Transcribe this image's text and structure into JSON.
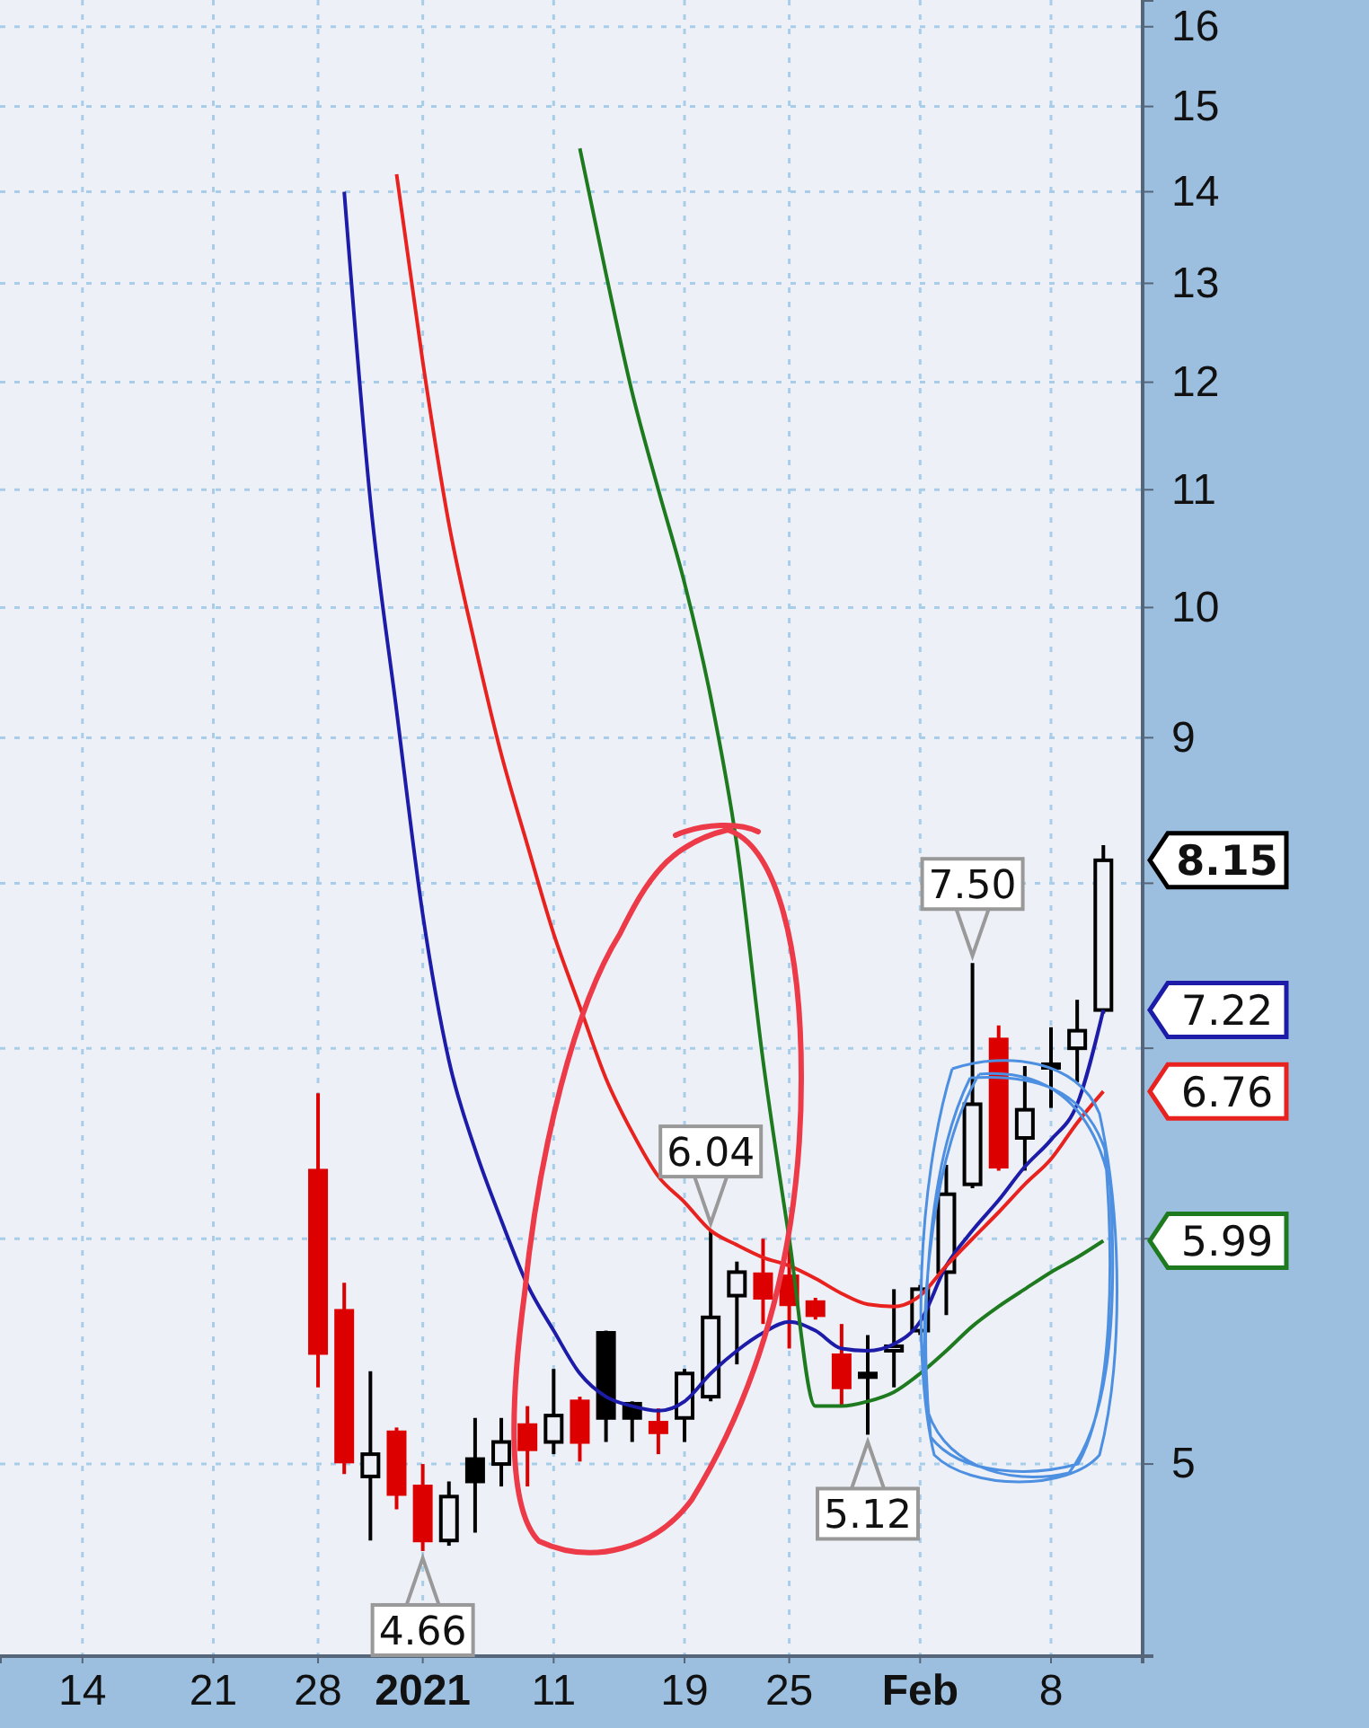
{
  "chart_data": {
    "type": "candlestick",
    "categories": [
      null,
      null,
      "14",
      null,
      null,
      null,
      null,
      "21",
      null,
      null,
      null,
      "28",
      null,
      null,
      null,
      "2021",
      null,
      null,
      null,
      null,
      "11",
      null,
      null,
      null,
      null,
      "19",
      null,
      null,
      null,
      "25",
      null,
      null,
      null,
      null,
      "Feb",
      null,
      null,
      null,
      null,
      "8",
      null,
      null,
      null
    ],
    "ohlc": [
      null,
      null,
      null,
      null,
      null,
      null,
      null,
      null,
      null,
      null,
      null,
      [
        6.34,
        6.75,
        5.32,
        5.47
      ],
      [
        5.66,
        5.79,
        4.96,
        5.01
      ],
      [
        4.95,
        5.39,
        4.7,
        5.04
      ],
      [
        5.13,
        5.15,
        4.82,
        4.88
      ],
      [
        4.91,
        5.0,
        4.66,
        4.7
      ],
      [
        4.7,
        4.93,
        4.68,
        4.87
      ],
      [
        5.02,
        5.19,
        4.73,
        4.93
      ],
      [
        5.0,
        5.19,
        4.91,
        5.09
      ],
      [
        5.16,
        5.24,
        4.91,
        5.06
      ],
      [
        5.09,
        5.4,
        5.04,
        5.2
      ],
      [
        5.26,
        5.28,
        5.01,
        5.09
      ],
      [
        5.56,
        5.57,
        5.09,
        5.19
      ],
      [
        5.25,
        5.26,
        5.09,
        5.19
      ],
      [
        5.17,
        5.23,
        5.04,
        5.13
      ],
      [
        5.19,
        5.4,
        5.09,
        5.38
      ],
      [
        5.28,
        6.04,
        5.26,
        5.63
      ],
      [
        5.73,
        5.89,
        5.42,
        5.84
      ],
      [
        5.83,
        6.0,
        5.6,
        5.72
      ],
      [
        5.82,
        5.98,
        5.49,
        5.69
      ],
      [
        5.7,
        5.72,
        5.62,
        5.64
      ],
      [
        5.46,
        5.6,
        5.24,
        5.32
      ],
      [
        5.37,
        5.55,
        5.12,
        5.38
      ],
      [
        5.48,
        5.76,
        5.32,
        5.5
      ],
      [
        5.57,
        5.78,
        5.55,
        5.76
      ],
      [
        5.84,
        6.37,
        5.64,
        6.22
      ],
      [
        6.27,
        7.5,
        6.25,
        6.69
      ],
      [
        7.05,
        7.13,
        6.34,
        6.36
      ],
      [
        6.51,
        6.9,
        6.34,
        6.66
      ],
      [
        6.91,
        7.12,
        6.67,
        6.89
      ],
      [
        7.0,
        7.28,
        6.81,
        7.1
      ],
      [
        7.22,
        8.25,
        7.2,
        8.15
      ],
      null
    ],
    "colors": [
      null,
      null,
      null,
      null,
      null,
      null,
      null,
      null,
      null,
      null,
      null,
      "#dd0000",
      "#dd0000",
      "#000000",
      "#dd0000",
      "#dd0000",
      "#000000",
      "#000000",
      "#000000",
      "#dd0000",
      "#000000",
      "#dd0000",
      "#000000",
      "#000000",
      "#dd0000",
      "#000000",
      "#000000",
      "#000000",
      "#dd0000",
      "#dd0000",
      "#dd0000",
      "#dd0000",
      "#000000",
      "#000000",
      "#000000",
      "#000000",
      "#000000",
      "#dd0000",
      "#000000",
      "#000000",
      "#000000",
      "#000000",
      null
    ],
    "series": [
      {
        "type": "line",
        "color": "#1c1ca8",
        "values": [
          null,
          null,
          null,
          null,
          null,
          null,
          null,
          null,
          null,
          null,
          null,
          null,
          14.0,
          10.9,
          9.2,
          7.8,
          6.93,
          6.45,
          6.09,
          5.78,
          5.57,
          5.38,
          5.28,
          5.24,
          5.22,
          5.26,
          5.38,
          5.48,
          5.56,
          5.61,
          5.57,
          5.49,
          5.48,
          5.51,
          5.61,
          5.87,
          6.04,
          6.19,
          6.36,
          6.5,
          6.69,
          7.22,
          null
        ]
      },
      {
        "type": "line",
        "color": "#e8231f",
        "values": [
          null,
          null,
          null,
          null,
          null,
          null,
          null,
          null,
          null,
          null,
          null,
          null,
          null,
          null,
          14.2,
          12.2,
          10.7,
          9.7,
          8.88,
          8.25,
          7.68,
          7.24,
          6.83,
          6.54,
          6.31,
          6.18,
          6.04,
          5.97,
          5.91,
          5.87,
          5.81,
          5.74,
          5.69,
          5.68,
          5.73,
          5.87,
          6.0,
          6.13,
          6.27,
          6.4,
          6.59,
          6.76,
          null
        ]
      },
      {
        "type": "line",
        "color": "#1e7a1e",
        "values": [
          null,
          null,
          null,
          null,
          null,
          null,
          null,
          null,
          null,
          null,
          null,
          null,
          null,
          null,
          null,
          null,
          null,
          null,
          null,
          null,
          null,
          14.5,
          13.1,
          11.9,
          11.0,
          10.2,
          9.3,
          8.25,
          6.93,
          6.0,
          5.24,
          5.24,
          5.26,
          5.3,
          5.38,
          5.48,
          5.59,
          5.68,
          5.76,
          5.84,
          5.91,
          5.99,
          null
        ]
      }
    ],
    "ylim": [
      4.28,
      16.35
    ],
    "yticks": [
      5,
      {
        "value": 6,
        "label": null
      },
      {
        "value": 7,
        "label": null
      },
      {
        "value": 8,
        "label": null
      },
      9,
      10,
      11,
      12,
      13,
      14,
      15,
      16
    ],
    "log": "y",
    "grid": true,
    "annotations": [
      "8.15",
      "7.22",
      "6.76",
      "5.99",
      {
        "text": "7.50",
        "y": 7.5
      },
      {
        "text": "6.04",
        "y": 6.04
      },
      {
        "text": "5.12",
        "y": 5.12
      },
      {
        "text": "4.66",
        "y": 4.66
      }
    ]
  }
}
